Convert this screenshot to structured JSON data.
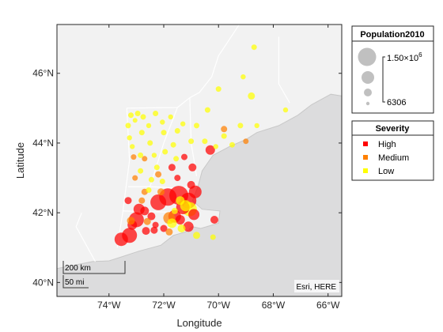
{
  "chart_data": {
    "type": "scatter",
    "geographic": true,
    "xlabel": "Longitude",
    "ylabel": "Latitude",
    "xlim": [
      -75.9,
      -65.5
    ],
    "ylim": [
      39.6,
      47.4
    ],
    "x_ticks": [
      -74,
      -72,
      -70,
      -68,
      -66
    ],
    "x_tick_labels": [
      "74°W",
      "72°W",
      "70°W",
      "68°W",
      "66°W"
    ],
    "y_ticks": [
      40,
      42,
      44,
      46
    ],
    "y_tick_labels": [
      "40°N",
      "42°N",
      "44°N",
      "46°N"
    ],
    "attribution": "Esri, HERE",
    "scalebar": {
      "km_label": "200 km",
      "mi_label": "50 mi"
    },
    "size_legend": {
      "title": "Population2010",
      "max_label_base": "1.50",
      "max_label_times": "×10",
      "max_label_exp": "6",
      "min_label": "6306"
    },
    "color_legend": {
      "title": "Severity",
      "entries": [
        {
          "label": "High",
          "color": "#ff0000"
        },
        {
          "label": "Medium",
          "color": "#ff8000"
        },
        {
          "label": "Low",
          "color": "#ffff00"
        }
      ]
    },
    "series": [
      {
        "name": "High",
        "color": "#ff0000",
        "points": [
          [
            -73.55,
            41.24,
            8.5
          ],
          [
            -73.25,
            41.35,
            9.5
          ],
          [
            -73.0,
            41.8,
            9.5
          ],
          [
            -72.9,
            42.1,
            7
          ],
          [
            -73.15,
            41.65,
            6
          ],
          [
            -72.65,
            41.48,
            5
          ],
          [
            -72.35,
            41.5,
            4.5
          ],
          [
            -72.2,
            42.3,
            10
          ],
          [
            -71.85,
            42.45,
            11
          ],
          [
            -71.45,
            42.5,
            12
          ],
          [
            -71.1,
            42.35,
            10
          ],
          [
            -70.85,
            42.6,
            8
          ],
          [
            -71.3,
            42.15,
            8.5
          ],
          [
            -71.6,
            41.9,
            8
          ],
          [
            -71.4,
            41.8,
            6
          ],
          [
            -71.1,
            41.6,
            6.5
          ],
          [
            -70.9,
            41.95,
            7
          ],
          [
            -70.15,
            41.8,
            5
          ],
          [
            -72.7,
            42.05,
            5.5
          ],
          [
            -72.45,
            41.9,
            5
          ],
          [
            -71.5,
            43.0,
            4
          ],
          [
            -71.7,
            43.3,
            4.5
          ],
          [
            -71.25,
            43.6,
            4
          ],
          [
            -70.95,
            43.3,
            5
          ],
          [
            -70.3,
            43.8,
            6
          ],
          [
            -73.3,
            42.35,
            4.5
          ],
          [
            -72.3,
            41.65,
            4
          ],
          [
            -72.0,
            41.55,
            4.5
          ],
          [
            -71.0,
            42.8,
            5
          ]
        ]
      },
      {
        "name": "Medium",
        "color": "#ff8000",
        "points": [
          [
            -73.2,
            41.77,
            5
          ],
          [
            -72.6,
            41.75,
            4.5
          ],
          [
            -72.8,
            42.35,
            4
          ],
          [
            -72.7,
            42.6,
            4
          ],
          [
            -71.8,
            41.85,
            7.5
          ],
          [
            -72.1,
            42.6,
            4.5
          ],
          [
            -71.8,
            41.45,
            4.5
          ],
          [
            -69.8,
            44.4,
            4
          ],
          [
            -69.0,
            44.05,
            3.5
          ],
          [
            -73.1,
            43.6,
            3.5
          ],
          [
            -73.05,
            43.0,
            3.5
          ],
          [
            -72.7,
            43.55,
            3.5
          ],
          [
            -72.2,
            43.1,
            4
          ]
        ]
      },
      {
        "name": "Low",
        "color": "#ffff00",
        "points": [
          [
            -68.7,
            46.75,
            3.5
          ],
          [
            -69.1,
            45.9,
            3.2
          ],
          [
            -68.8,
            45.35,
            4.5
          ],
          [
            -70.0,
            45.55,
            3.5
          ],
          [
            -70.4,
            44.95,
            3.5
          ],
          [
            -69.8,
            44.2,
            3.5
          ],
          [
            -69.2,
            44.5,
            3.5
          ],
          [
            -68.6,
            44.5,
            3.2
          ],
          [
            -69.5,
            43.95,
            3.5
          ],
          [
            -67.55,
            44.95,
            3.2
          ],
          [
            -70.8,
            44.5,
            3.5
          ],
          [
            -71.3,
            44.55,
            3.2
          ],
          [
            -71.0,
            44.05,
            3.5
          ],
          [
            -70.5,
            44.05,
            3.5
          ],
          [
            -70.1,
            43.9,
            3.2
          ],
          [
            -71.75,
            44.75,
            3.2
          ],
          [
            -71.5,
            44.35,
            3.5
          ],
          [
            -72.05,
            44.6,
            3.2
          ],
          [
            -72.0,
            44.3,
            3.5
          ],
          [
            -72.3,
            44.85,
            3.5
          ],
          [
            -72.75,
            44.75,
            3.5
          ],
          [
            -73.2,
            44.8,
            3.5
          ],
          [
            -72.95,
            44.85,
            3.5
          ],
          [
            -73.3,
            44.5,
            3.5
          ],
          [
            -72.55,
            44.5,
            3.2
          ],
          [
            -72.8,
            44.3,
            3.5
          ],
          [
            -73.25,
            44.15,
            3.2
          ],
          [
            -72.5,
            44.0,
            3.5
          ],
          [
            -73.15,
            43.9,
            3.2
          ],
          [
            -72.85,
            43.65,
            3.5
          ],
          [
            -72.35,
            43.65,
            3.2
          ],
          [
            -71.95,
            43.75,
            3.5
          ],
          [
            -71.65,
            43.95,
            3.5
          ],
          [
            -71.55,
            43.55,
            3.5
          ],
          [
            -72.25,
            43.3,
            3.5
          ],
          [
            -72.85,
            43.2,
            3.5
          ],
          [
            -72.45,
            42.95,
            3.5
          ],
          [
            -72.55,
            42.65,
            3.5
          ],
          [
            -72.05,
            42.9,
            3.5
          ],
          [
            -71.05,
            42.1,
            9
          ],
          [
            -71.2,
            42.2,
            7
          ],
          [
            -71.4,
            42.35,
            5.5
          ],
          [
            -71.7,
            41.7,
            6
          ],
          [
            -71.35,
            41.55,
            5
          ],
          [
            -70.8,
            41.35,
            4.5
          ],
          [
            -70.2,
            41.3,
            3.5
          ],
          [
            -71.6,
            42.05,
            4
          ],
          [
            -73.05,
            44.65,
            3
          ]
        ]
      }
    ],
    "coastline_lonlat": [
      [
        -74.6,
        40.6
      ],
      [
        -74.0,
        40.62
      ],
      [
        -73.6,
        40.72
      ],
      [
        -72.9,
        40.9
      ],
      [
        -72.1,
        41.07
      ],
      [
        -71.65,
        41.35
      ],
      [
        -71.2,
        41.45
      ],
      [
        -70.95,
        41.6
      ],
      [
        -70.65,
        41.55
      ],
      [
        -70.0,
        41.7
      ],
      [
        -69.95,
        42.05
      ],
      [
        -70.6,
        42.1
      ],
      [
        -70.95,
        42.35
      ],
      [
        -70.75,
        42.75
      ],
      [
        -70.6,
        43.2
      ],
      [
        -70.2,
        43.65
      ],
      [
        -69.6,
        43.9
      ],
      [
        -69.0,
        44.1
      ],
      [
        -68.6,
        44.3
      ],
      [
        -67.8,
        44.5
      ],
      [
        -67.1,
        44.8
      ],
      [
        -66.6,
        45.1
      ],
      [
        -65.9,
        45.4
      ],
      [
        -65.5,
        45.35
      ]
    ],
    "land_polygon_lonlat": [
      [
        -75.9,
        47.4
      ],
      [
        -65.5,
        47.4
      ],
      [
        -65.5,
        45.35
      ],
      [
        -65.9,
        45.4
      ],
      [
        -66.6,
        45.1
      ],
      [
        -67.1,
        44.8
      ],
      [
        -67.8,
        44.5
      ],
      [
        -68.6,
        44.3
      ],
      [
        -69.0,
        44.1
      ],
      [
        -69.6,
        43.9
      ],
      [
        -70.2,
        43.65
      ],
      [
        -70.6,
        43.2
      ],
      [
        -70.75,
        42.75
      ],
      [
        -70.95,
        42.35
      ],
      [
        -70.6,
        42.1
      ],
      [
        -69.95,
        42.05
      ],
      [
        -70.0,
        41.7
      ],
      [
        -70.65,
        41.55
      ],
      [
        -70.95,
        41.6
      ],
      [
        -71.2,
        41.45
      ],
      [
        -71.65,
        41.35
      ],
      [
        -72.1,
        41.07
      ],
      [
        -72.9,
        40.9
      ],
      [
        -73.6,
        40.72
      ],
      [
        -74.0,
        40.62
      ],
      [
        -74.6,
        40.6
      ],
      [
        -75.9,
        40.4
      ]
    ],
    "borders_lonlat": [
      [
        [
          -73.35,
          45.0
        ],
        [
          -73.25,
          43.5
        ],
        [
          -73.5,
          42.0
        ],
        [
          -73.7,
          41.0
        ]
      ],
      [
        [
          -73.35,
          45.0
        ],
        [
          -71.5,
          45.02
        ],
        [
          -71.05,
          45.3
        ],
        [
          -70.7,
          45.45
        ],
        [
          -70.25,
          45.9
        ],
        [
          -70.0,
          46.5
        ],
        [
          -69.2,
          47.45
        ]
      ],
      [
        [
          -71.5,
          45.02
        ],
        [
          -72.0,
          44.0
        ],
        [
          -72.5,
          42.75
        ]
      ],
      [
        [
          -71.05,
          45.3
        ],
        [
          -71.0,
          44.0
        ],
        [
          -70.8,
          43.05
        ]
      ],
      [
        [
          -73.5,
          42.05
        ],
        [
          -71.8,
          42.02
        ],
        [
          -71.8,
          41.35
        ]
      ],
      [
        [
          -71.8,
          42.02
        ],
        [
          -71.4,
          42.02
        ],
        [
          -71.1,
          41.5
        ]
      ],
      [
        [
          -73.3,
          42.75
        ],
        [
          -72.5,
          42.75
        ],
        [
          -71.3,
          42.7
        ],
        [
          -70.8,
          42.85
        ]
      ],
      [
        [
          -67.8,
          47.05
        ],
        [
          -67.8,
          45.7
        ],
        [
          -67.4,
          45.15
        ]
      ],
      [
        [
          -74.5,
          40.6
        ],
        [
          -75.2,
          41.6
        ],
        [
          -75.0,
          42.0
        ]
      ]
    ]
  }
}
